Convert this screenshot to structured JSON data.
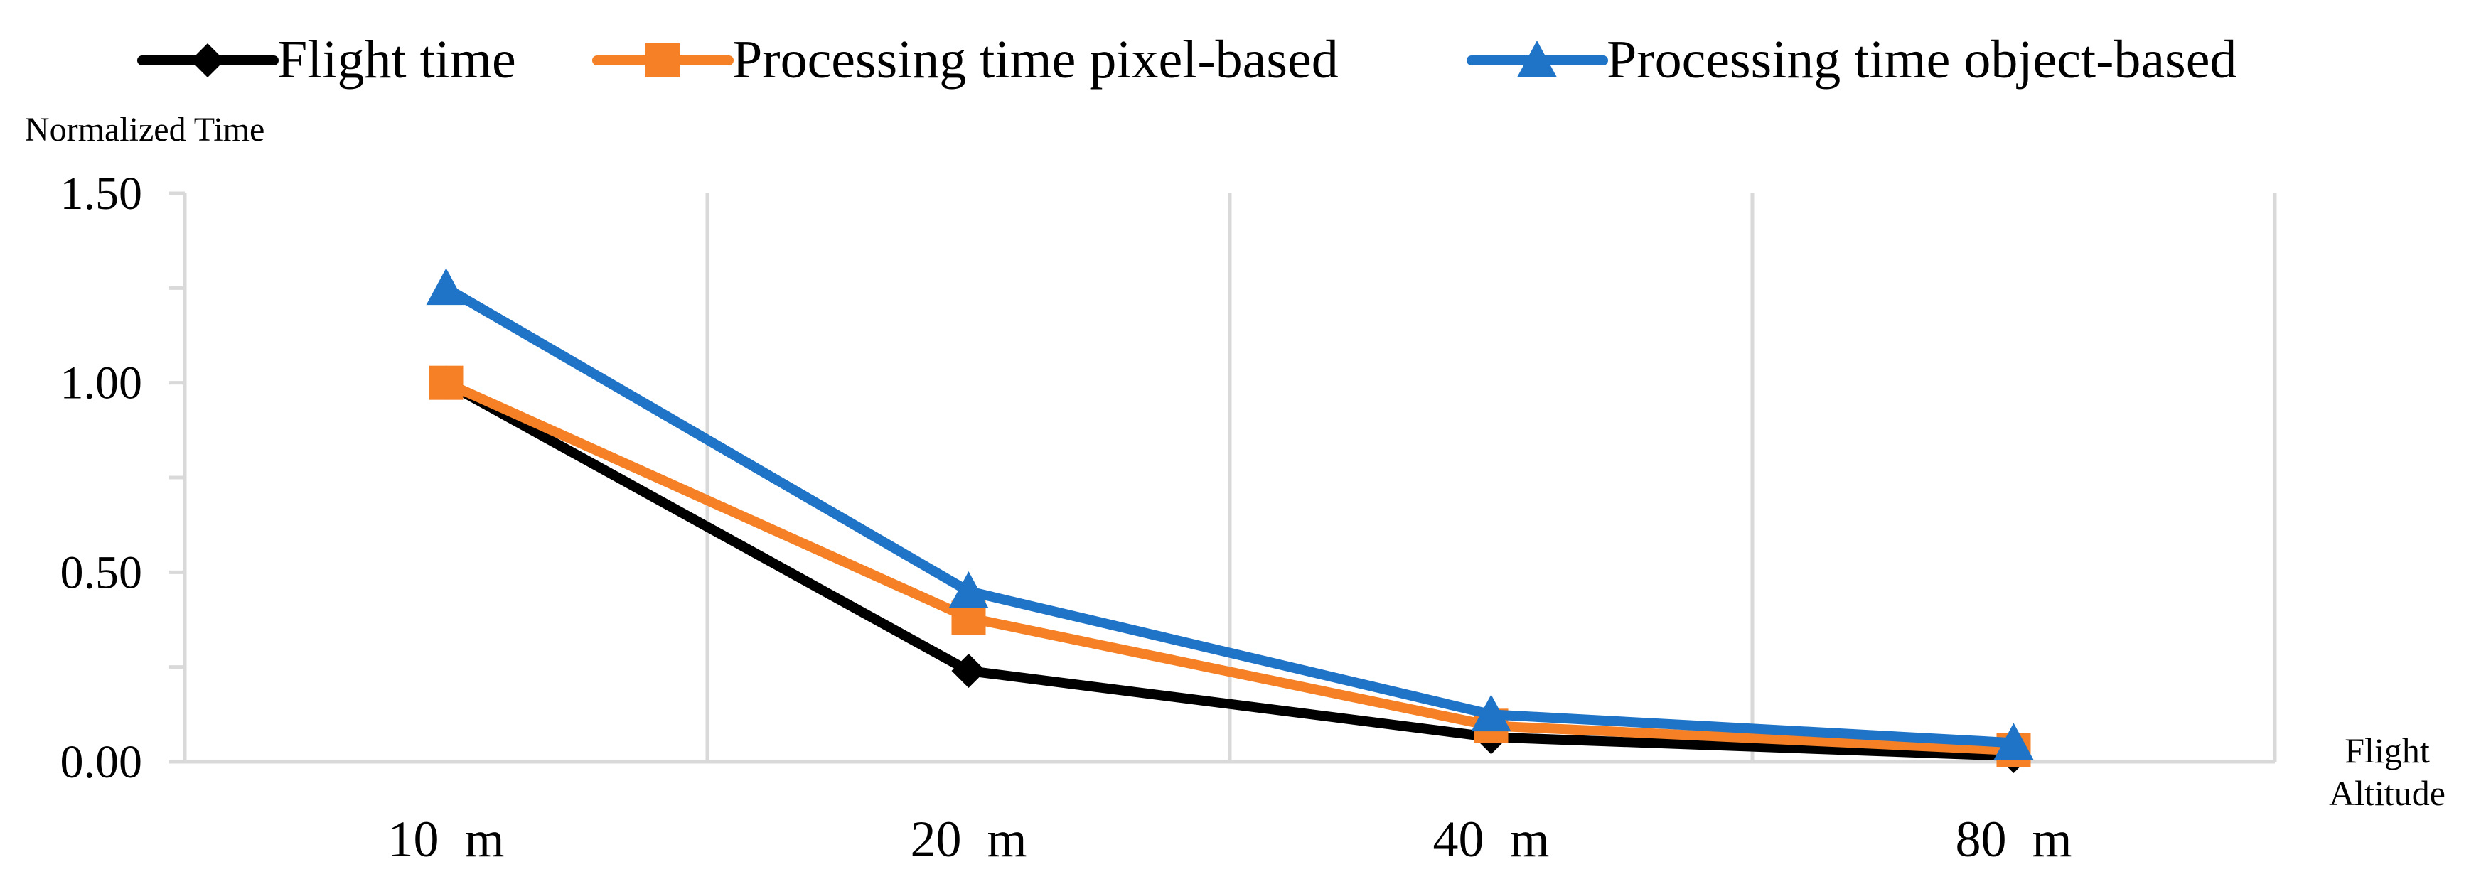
{
  "chart_data": {
    "type": "line",
    "title": "",
    "xlabel": "Flight Altitude",
    "xlabel_lines": [
      "Flight",
      "Altitude"
    ],
    "ylabel": "Normalized Time",
    "categories": [
      "10  m",
      "20  m",
      "40  m",
      "80  m"
    ],
    "ylim": [
      0,
      1.5
    ],
    "ytick_labels": [
      "0.00",
      "0.50",
      "1.00",
      "1.50"
    ],
    "ytick_values": [
      0,
      0.5,
      1.0,
      1.5
    ],
    "grid": "vertical",
    "legend_position": "top",
    "series": [
      {
        "name": "Flight time",
        "color": "#000000",
        "marker": "diamond",
        "values": [
          1.0,
          0.24,
          0.065,
          0.015
        ]
      },
      {
        "name": "Processing time pixel-based",
        "color": "#f58025",
        "marker": "square",
        "values": [
          1.0,
          0.38,
          0.095,
          0.03
        ]
      },
      {
        "name": "Processing time object-based",
        "color": "#1f74c8",
        "marker": "triangle",
        "values": [
          1.25,
          0.45,
          0.125,
          0.05
        ]
      }
    ]
  }
}
